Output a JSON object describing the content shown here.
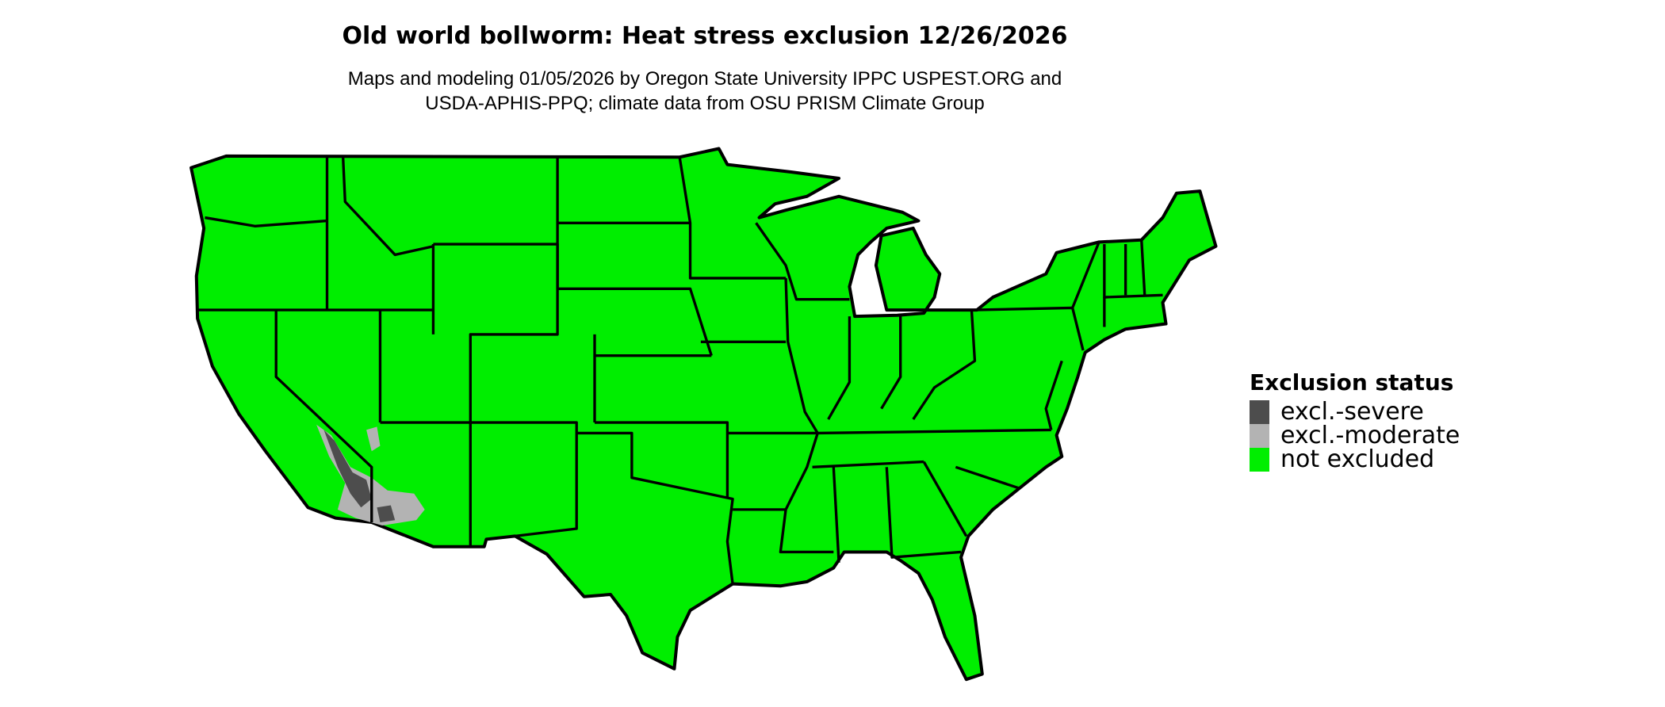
{
  "chart_data": {
    "type": "choropleth-map",
    "title": "Old world bollworm: Heat stress exclusion 12/26/2026",
    "subtitle_lines": [
      "Maps and modeling 01/05/2026 by Oregon State University IPPC USPEST.ORG and",
      "USDA-APHIS-PPQ; climate data from OSU PRISM Climate Group"
    ],
    "region": "Contiguous United States",
    "legend": {
      "title": "Exclusion status",
      "placement": "right",
      "items": [
        {
          "label": "excl.-severe",
          "color": "#4d4d4d"
        },
        {
          "label": "excl.-moderate",
          "color": "#b3b3b3"
        },
        {
          "label": "not excluded",
          "color": "#00ee00"
        }
      ]
    }
  }
}
